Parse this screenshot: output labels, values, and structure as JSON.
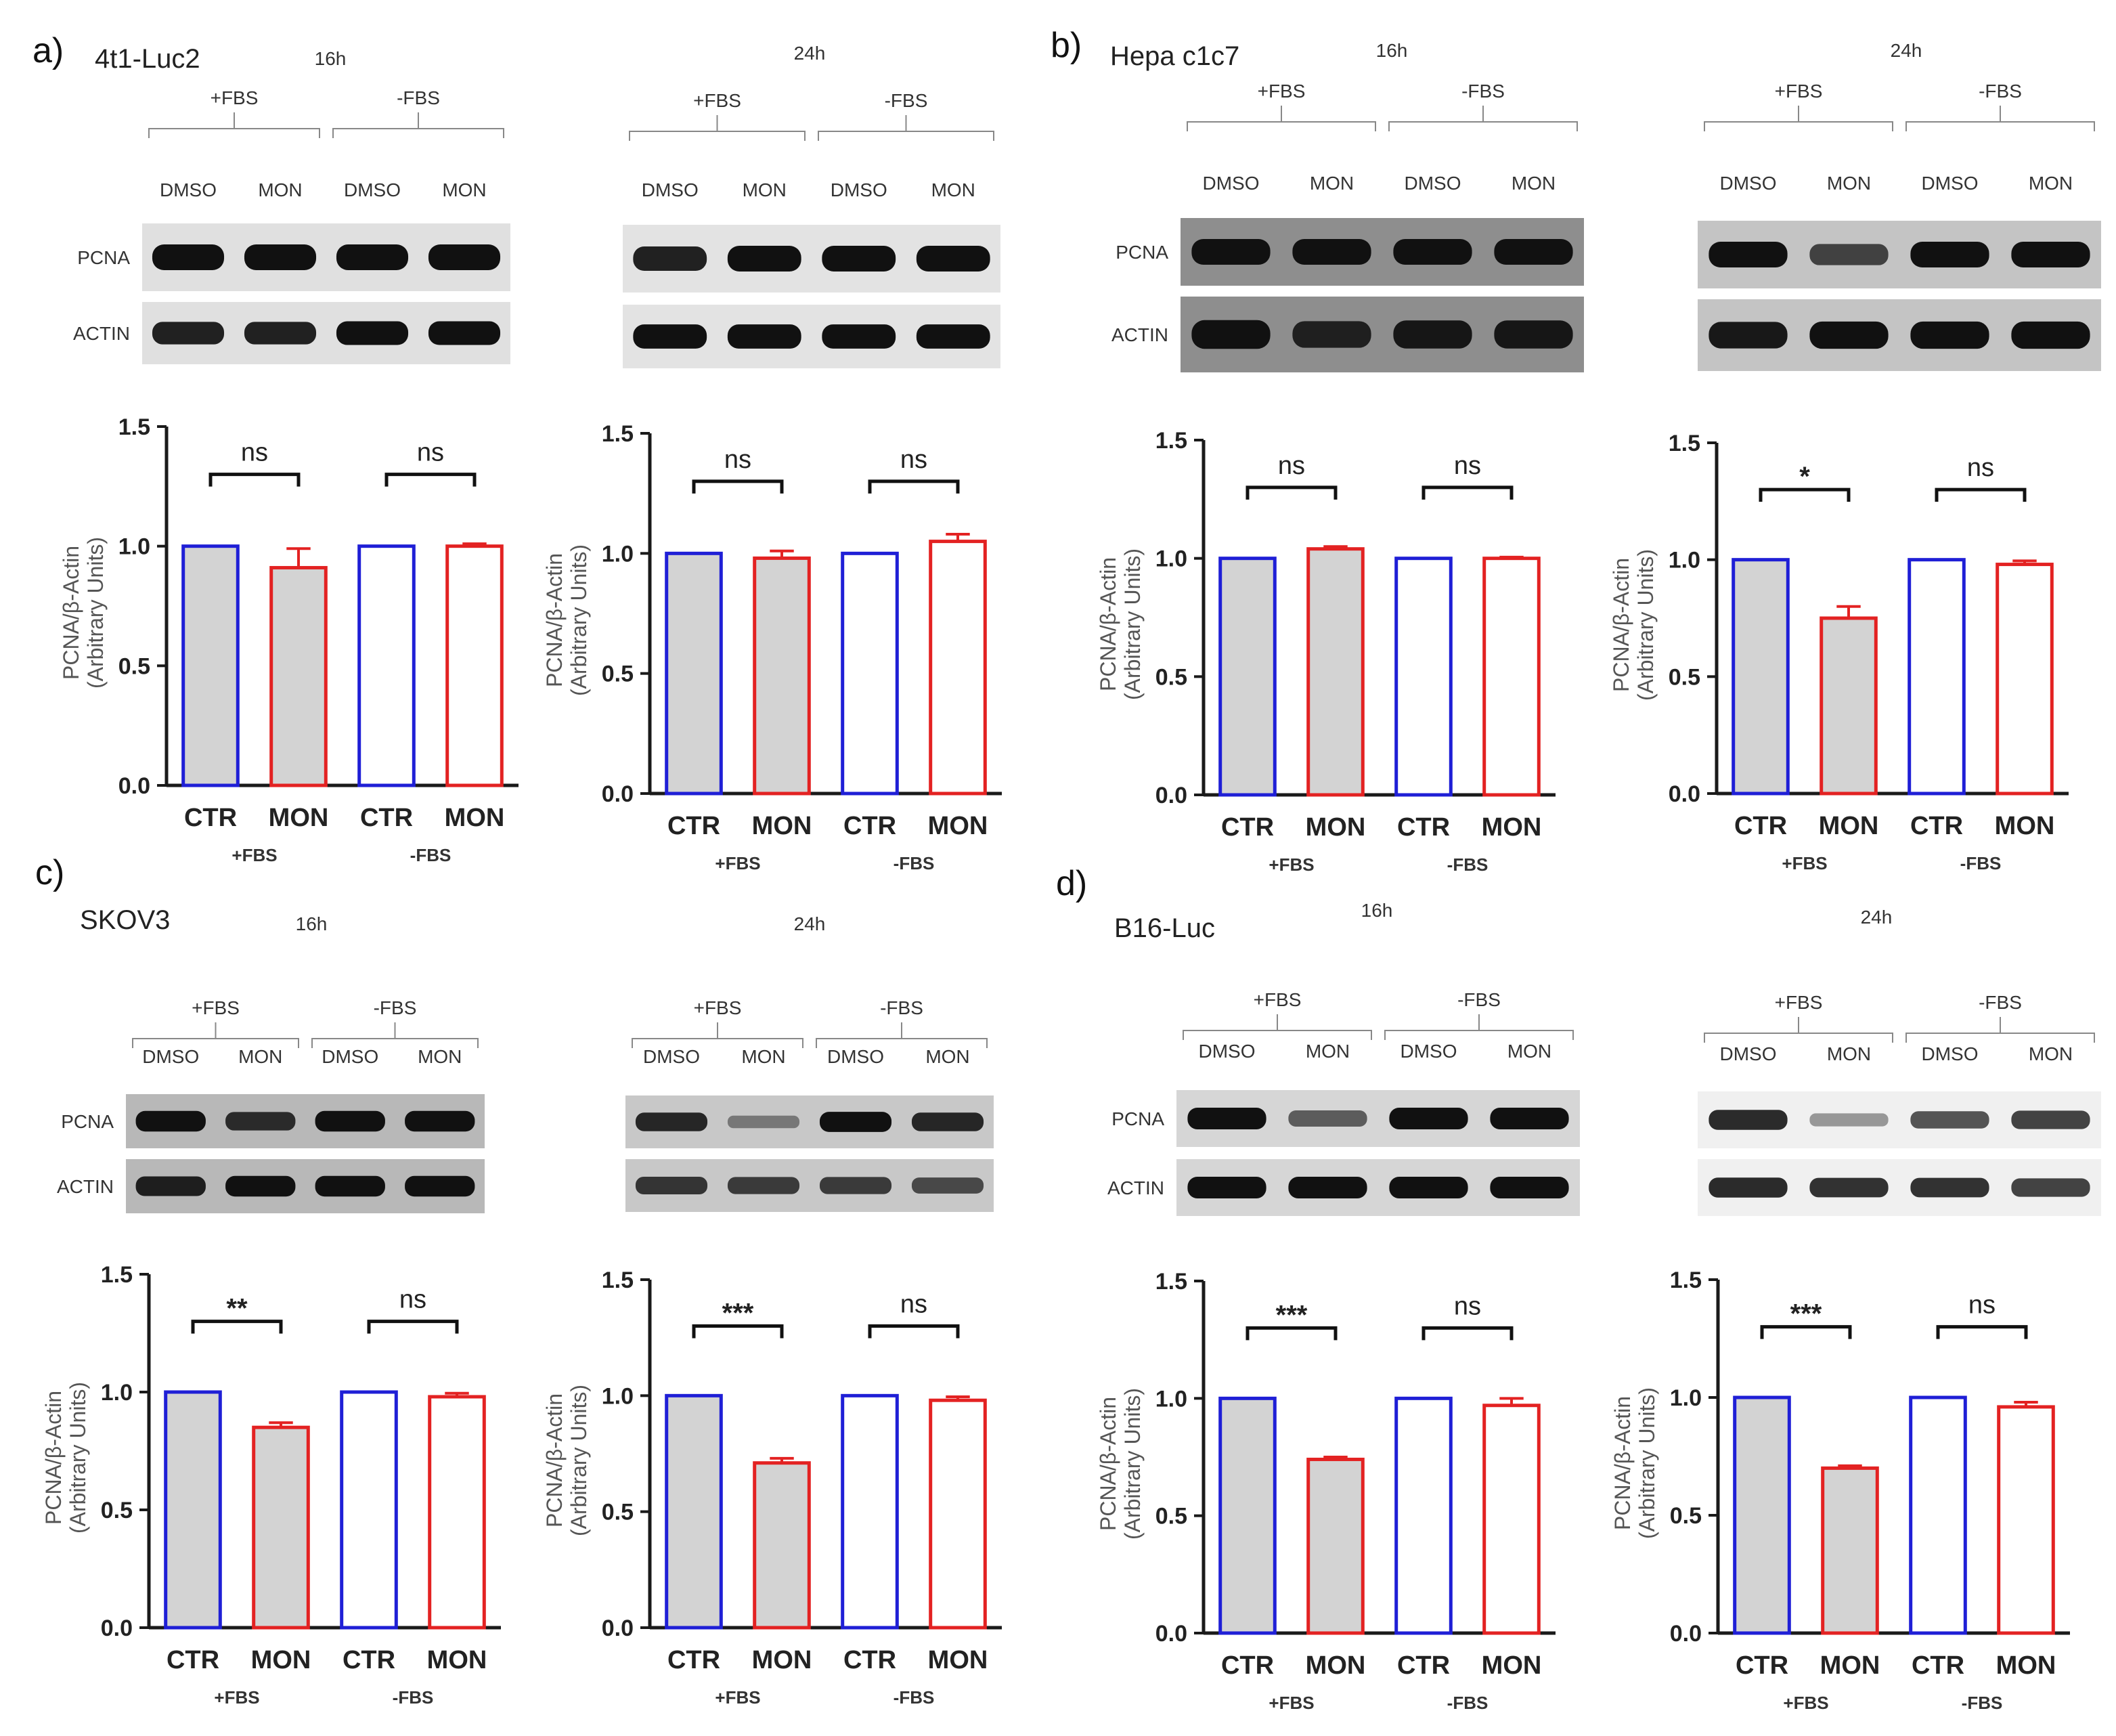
{
  "panels": [
    {
      "letter": "a)",
      "cell": "4t1-Luc2"
    },
    {
      "letter": "b)",
      "cell": "Hepa c1c7"
    },
    {
      "letter": "c)",
      "cell": "SKOV3"
    },
    {
      "letter": "d)",
      "cell": "B16-Luc"
    }
  ],
  "blot_labels": {
    "fbs_plus": "+FBS",
    "fbs_minus": "-FBS",
    "dmso": "DMSO",
    "mon": "MON",
    "pcna": "PCNA",
    "actin": "ACTIN"
  },
  "chart_common": {
    "ylabel_1": "PCNA/β-Actin",
    "ylabel_2": "(Arbitrary Units)",
    "categories": [
      "CTR",
      "MON",
      "CTR",
      "MON"
    ],
    "groups": [
      "+FBS",
      "-FBS"
    ],
    "yticks": [
      "0.0",
      "0.5",
      "1.0",
      "1.5"
    ]
  },
  "colors": {
    "ctr": "#1f1fd6",
    "mon": "#e32222",
    "fill": "#d3d3d3",
    "axis": "#1a1a1a"
  },
  "chart_data": [
    {
      "type": "bar",
      "panel": "a)",
      "time": "16h",
      "categories": [
        "CTR",
        "MON",
        "CTR",
        "MON"
      ],
      "values": [
        1.0,
        0.91,
        1.0,
        1.0
      ],
      "errors": [
        0,
        0.08,
        0,
        0.01
      ],
      "ylim": [
        0,
        1.5
      ],
      "sig": [
        "ns",
        "ns"
      ]
    },
    {
      "type": "bar",
      "panel": "a)",
      "time": "24h",
      "categories": [
        "CTR",
        "MON",
        "CTR",
        "MON"
      ],
      "values": [
        1.0,
        0.98,
        1.0,
        1.05
      ],
      "errors": [
        0,
        0.03,
        0,
        0.03
      ],
      "ylim": [
        0,
        1.5
      ],
      "sig": [
        "ns",
        "ns"
      ]
    },
    {
      "type": "bar",
      "panel": "b)",
      "time": "16h",
      "categories": [
        "CTR",
        "MON",
        "CTR",
        "MON"
      ],
      "values": [
        1.0,
        1.04,
        1.0,
        1.0
      ],
      "errors": [
        0,
        0.01,
        0,
        0.005
      ],
      "ylim": [
        0,
        1.5
      ],
      "sig": [
        "ns",
        "ns"
      ]
    },
    {
      "type": "bar",
      "panel": "b)",
      "time": "24h",
      "categories": [
        "CTR",
        "MON",
        "CTR",
        "MON"
      ],
      "values": [
        1.0,
        0.75,
        1.0,
        0.98
      ],
      "errors": [
        0,
        0.05,
        0,
        0.015
      ],
      "ylim": [
        0,
        1.5
      ],
      "sig": [
        "*",
        "ns"
      ]
    },
    {
      "type": "bar",
      "panel": "c)",
      "time": "16h",
      "categories": [
        "CTR",
        "MON",
        "CTR",
        "MON"
      ],
      "values": [
        1.0,
        0.85,
        1.0,
        0.98
      ],
      "errors": [
        0,
        0.02,
        0,
        0.015
      ],
      "ylim": [
        0,
        1.5
      ],
      "sig": [
        "**",
        "ns"
      ]
    },
    {
      "type": "bar",
      "panel": "c)",
      "time": "24h",
      "categories": [
        "CTR",
        "MON",
        "CTR",
        "MON"
      ],
      "values": [
        1.0,
        0.71,
        1.0,
        0.98
      ],
      "errors": [
        0,
        0.02,
        0,
        0.015
      ],
      "ylim": [
        0,
        1.5
      ],
      "sig": [
        "***",
        "ns"
      ]
    },
    {
      "type": "bar",
      "panel": "d)",
      "time": "16h",
      "categories": [
        "CTR",
        "MON",
        "CTR",
        "MON"
      ],
      "values": [
        1.0,
        0.74,
        1.0,
        0.97
      ],
      "errors": [
        0,
        0.01,
        0,
        0.03
      ],
      "ylim": [
        0,
        1.5
      ],
      "sig": [
        "***",
        "ns"
      ]
    },
    {
      "type": "bar",
      "panel": "d)",
      "time": "24h",
      "categories": [
        "CTR",
        "MON",
        "CTR",
        "MON"
      ],
      "values": [
        1.0,
        0.7,
        1.0,
        0.96
      ],
      "errors": [
        0,
        0.01,
        0,
        0.02
      ],
      "ylim": [
        0,
        1.5
      ],
      "sig": [
        "***",
        "ns"
      ]
    }
  ],
  "blots": [
    {
      "pcna": [
        1,
        1,
        1,
        1
      ],
      "actin": [
        0.9,
        0.9,
        1,
        1
      ],
      "bg": "#e0e0e0"
    },
    {
      "pcna": [
        0.9,
        1,
        1,
        1
      ],
      "actin": [
        1,
        1,
        1,
        1
      ],
      "bg": "#e3e3e3"
    },
    {
      "pcna": [
        1,
        1,
        1,
        1
      ],
      "actin": [
        1,
        0.85,
        0.95,
        0.95
      ],
      "bg": "#8e8e8e"
    },
    {
      "pcna": [
        1,
        0.65,
        1,
        1
      ],
      "actin": [
        0.95,
        1,
        1,
        1
      ],
      "bg": "#c4c4c4"
    },
    {
      "pcna": [
        1,
        0.8,
        1,
        1
      ],
      "actin": [
        0.9,
        1,
        1,
        1
      ],
      "bg": "#b8b8b8"
    },
    {
      "pcna": [
        0.85,
        0.25,
        1,
        0.85
      ],
      "actin": [
        0.75,
        0.7,
        0.7,
        0.6
      ],
      "bg": "#c8c8c8"
    },
    {
      "pcna": [
        1,
        0.5,
        1,
        1
      ],
      "actin": [
        1,
        1,
        1,
        1
      ],
      "bg": "#d6d6d6"
    },
    {
      "pcna": [
        0.85,
        0.2,
        0.6,
        0.7
      ],
      "actin": [
        0.85,
        0.8,
        0.8,
        0.7
      ],
      "bg": "#f0f0f0"
    }
  ]
}
